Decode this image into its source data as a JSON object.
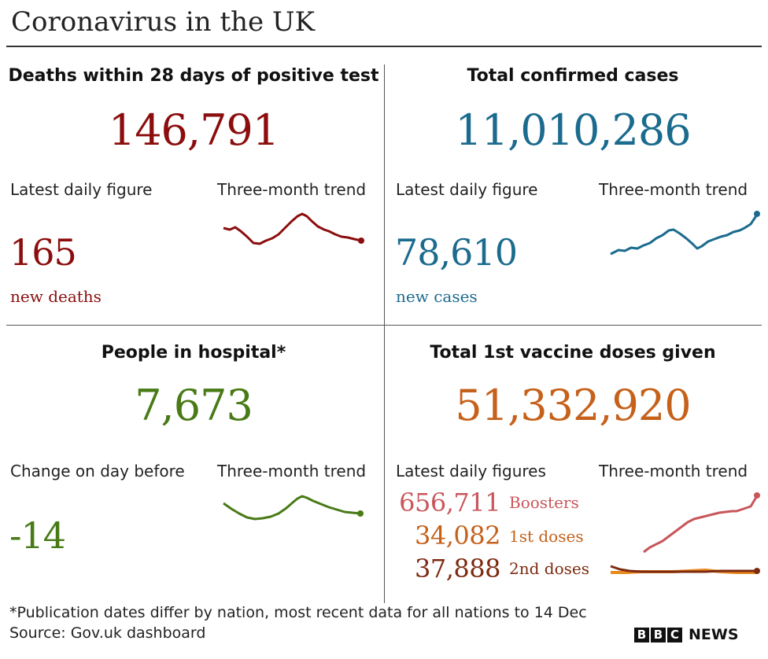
{
  "header": {
    "title": "Coronavirus in the UK"
  },
  "deaths": {
    "title": "Deaths within 28 days of positive test",
    "total": "146,791",
    "daily_label": "Latest daily figure",
    "trend_label": "Three-month trend",
    "daily_value": "165",
    "daily_unit": "new deaths",
    "color": "#8b0d0d"
  },
  "cases": {
    "title": "Total confirmed cases",
    "total": "11,010,286",
    "daily_label": "Latest daily figure",
    "trend_label": "Three-month trend",
    "daily_value": "78,610",
    "daily_unit": "new cases",
    "color": "#1b6b8e"
  },
  "hospital": {
    "title": "People in hospital*",
    "total": "7,673",
    "change_label": "Change on day before",
    "trend_label": "Three-month trend",
    "change_value": "-14",
    "color": "#487a16"
  },
  "vaccines": {
    "title": "Total 1st vaccine doses given",
    "total": "51,332,920",
    "daily_label": "Latest daily figures",
    "trend_label": "Three-month trend",
    "rows": [
      {
        "value": "656,711",
        "label": "Boosters",
        "color": "#c8565b"
      },
      {
        "value": "34,082",
        "label": "1st doses",
        "color": "#c5611a"
      },
      {
        "value": "37,888",
        "label": "2nd doses",
        "color": "#7d2a10"
      }
    ]
  },
  "footer": {
    "footnote": "*Publication dates differ by nation, most recent data for all nations to 14 Dec",
    "source": "Source: Gov.uk dashboard",
    "brand_letters": [
      "B",
      "B",
      "C"
    ],
    "brand_word": "NEWS"
  }
}
